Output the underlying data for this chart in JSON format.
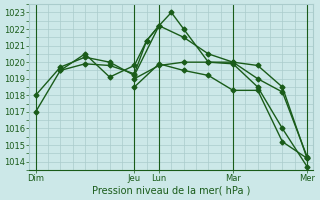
{
  "title": "Pression niveau de la mer( hPa )",
  "bg_color": "#cce8e8",
  "grid_color": "#aacccc",
  "line_color": "#1a5c1a",
  "tick_color": "#1a5c1a",
  "ylim": [
    1013.5,
    1023.5
  ],
  "yticks": [
    1014,
    1015,
    1016,
    1017,
    1018,
    1019,
    1020,
    1021,
    1022,
    1023
  ],
  "day_labels": [
    "Dim",
    "Jeu",
    "Lun",
    "Mar",
    "Mer"
  ],
  "day_positions": [
    0,
    8,
    10,
    16,
    22
  ],
  "vline_positions": [
    0,
    8,
    10,
    16,
    22
  ],
  "total_steps": 22,
  "series": [
    {
      "x": [
        0,
        2,
        4,
        6,
        8,
        9,
        10,
        11,
        12,
        14,
        16,
        18,
        20,
        22
      ],
      "y": [
        1017.0,
        1019.5,
        1019.9,
        1019.8,
        1019.3,
        1021.3,
        1022.2,
        1023.0,
        1022.0,
        1020.0,
        1020.0,
        1019.8,
        1018.5,
        1014.2
      ]
    },
    {
      "x": [
        0,
        2,
        4,
        6,
        8,
        10,
        12,
        14,
        16,
        18,
        20,
        22
      ],
      "y": [
        1018.0,
        1019.7,
        1020.3,
        1020.0,
        1019.2,
        1022.2,
        1021.5,
        1020.5,
        1020.0,
        1019.0,
        1018.2,
        1014.3
      ]
    },
    {
      "x": [
        2,
        4,
        6,
        8,
        9,
        10
      ],
      "y": [
        1019.5,
        1020.5,
        1019.1,
        1019.8,
        1021.3,
        1022.2
      ]
    },
    {
      "x": [
        8,
        10,
        12,
        14,
        16,
        18,
        20,
        22
      ],
      "y": [
        1019.0,
        1019.8,
        1020.0,
        1020.0,
        1019.9,
        1018.5,
        1016.0,
        1013.7
      ]
    },
    {
      "x": [
        8,
        10,
        12,
        14,
        16,
        18,
        20,
        22
      ],
      "y": [
        1018.5,
        1019.9,
        1019.5,
        1019.2,
        1018.3,
        1018.3,
        1015.2,
        1014.2
      ]
    }
  ],
  "marker": "D",
  "markersize": 2.5,
  "linewidth": 1.0
}
